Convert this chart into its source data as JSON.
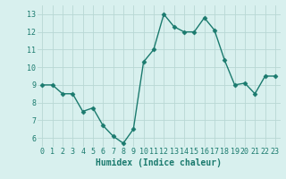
{
  "x": [
    0,
    1,
    2,
    3,
    4,
    5,
    6,
    7,
    8,
    9,
    10,
    11,
    12,
    13,
    14,
    15,
    16,
    17,
    18,
    19,
    20,
    21,
    22,
    23
  ],
  "y": [
    9.0,
    9.0,
    8.5,
    8.5,
    7.5,
    7.7,
    6.7,
    6.1,
    5.7,
    6.5,
    10.3,
    11.0,
    13.0,
    12.3,
    12.0,
    12.0,
    12.8,
    12.1,
    10.4,
    9.0,
    9.1,
    8.5,
    9.5,
    9.5
  ],
  "line_color": "#1a7a6e",
  "bg_color": "#d8f0ee",
  "grid_color": "#b8d8d4",
  "xlabel": "Humidex (Indice chaleur)",
  "ylim": [
    5.5,
    13.5
  ],
  "xlim": [
    -0.5,
    23.5
  ],
  "yticks": [
    6,
    7,
    8,
    9,
    10,
    11,
    12,
    13
  ],
  "xtick_labels": [
    "0",
    "1",
    "2",
    "3",
    "4",
    "5",
    "6",
    "7",
    "8",
    "9",
    "10",
    "11",
    "12",
    "13",
    "14",
    "15",
    "16",
    "17",
    "18",
    "19",
    "20",
    "21",
    "22",
    "23"
  ],
  "tick_color": "#1a7a6e",
  "label_fontsize": 7,
  "tick_fontsize": 6,
  "marker_size": 2.5,
  "line_width": 1.0
}
